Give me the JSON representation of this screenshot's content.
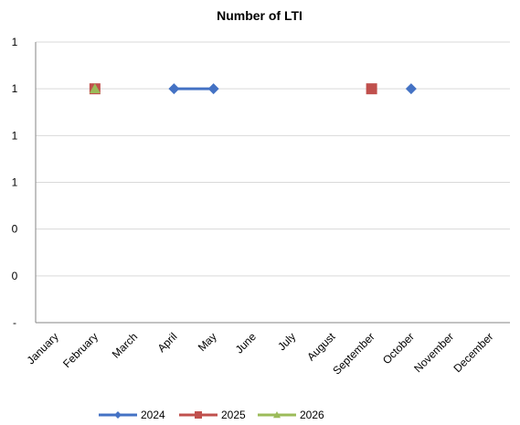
{
  "chart_data": {
    "type": "line",
    "title": "Number of LTI",
    "xlabel": "",
    "ylabel": "",
    "categories": [
      "January",
      "February",
      "March",
      "April",
      "May",
      "June",
      "July",
      "August",
      "September",
      "October",
      "November",
      "December"
    ],
    "y_tick_labels": [
      "-",
      "0",
      "0",
      "1",
      "1",
      "1",
      "1"
    ],
    "ylim": [
      0,
      1.2
    ],
    "grid": "horizontal",
    "legend_position": "bottom",
    "series": [
      {
        "name": "2024",
        "color": "#4472C4",
        "marker": "diamond",
        "values": [
          null,
          null,
          null,
          1,
          1,
          null,
          null,
          null,
          null,
          1,
          null,
          null
        ]
      },
      {
        "name": "2025",
        "color": "#C0504D",
        "marker": "square",
        "values": [
          null,
          1,
          null,
          null,
          null,
          null,
          null,
          null,
          1,
          null,
          null,
          null
        ]
      },
      {
        "name": "2026",
        "color": "#9BBB59",
        "marker": "triangle",
        "values": [
          null,
          1,
          null,
          null,
          null,
          null,
          null,
          null,
          null,
          null,
          null,
          null
        ]
      }
    ]
  }
}
